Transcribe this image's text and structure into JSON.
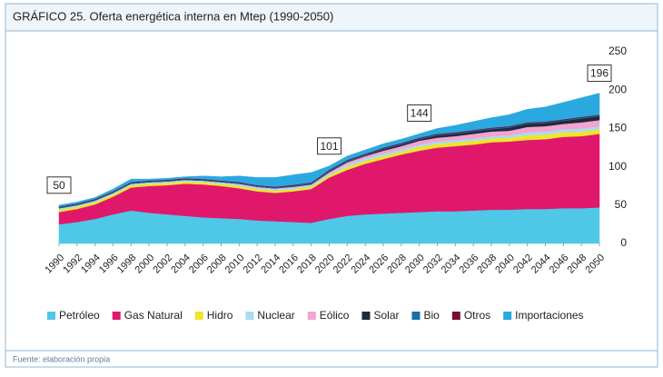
{
  "chart_data": {
    "type": "stacked_area",
    "title": "GRÁFICO 25. Oferta energética interna en Mtep (1990-2050)",
    "source": "Fuente: elaboración propia",
    "x": [
      1990,
      1992,
      1994,
      1996,
      1998,
      2000,
      2002,
      2004,
      2006,
      2008,
      2010,
      2012,
      2014,
      2016,
      2018,
      2020,
      2022,
      2024,
      2026,
      2028,
      2030,
      2032,
      2034,
      2036,
      2038,
      2040,
      2042,
      2044,
      2046,
      2048,
      2050
    ],
    "xlim": [
      1990,
      2050
    ],
    "ylim": [
      0,
      250
    ],
    "yticks": [
      0,
      50,
      100,
      150,
      200,
      250
    ],
    "series": [
      {
        "name": "Petróleo",
        "color": "#4fc8e8",
        "values": [
          25,
          28,
          32,
          38,
          43,
          40,
          38,
          36,
          34,
          33,
          32,
          30,
          29,
          28,
          27,
          32,
          36,
          38,
          39,
          40,
          41,
          42,
          42,
          43,
          44,
          44,
          45,
          45,
          46,
          46,
          47
        ]
      },
      {
        "name": "Gas Natural",
        "color": "#e0186c",
        "values": [
          16,
          17,
          19,
          23,
          30,
          35,
          38,
          42,
          43,
          42,
          40,
          38,
          37,
          40,
          44,
          54,
          60,
          66,
          71,
          76,
          80,
          83,
          85,
          86,
          88,
          89,
          90,
          91,
          93,
          94,
          96
        ]
      },
      {
        "name": "Hidro",
        "color": "#f2e32c",
        "values": [
          3,
          3,
          3,
          3,
          3,
          3,
          3,
          3,
          3,
          3,
          3,
          3,
          3,
          3,
          3,
          3,
          4,
          4,
          4,
          4,
          5,
          5,
          5,
          5,
          5,
          5,
          6,
          6,
          6,
          6,
          6
        ]
      },
      {
        "name": "Nuclear",
        "color": "#a8ddf0",
        "values": [
          2,
          2,
          2,
          2,
          2,
          2,
          2,
          2,
          2,
          2,
          2,
          2,
          2,
          2,
          2,
          2,
          3,
          3,
          3,
          3,
          3,
          3,
          3,
          3,
          3,
          3,
          4,
          4,
          4,
          4,
          4
        ]
      },
      {
        "name": "Eólico",
        "color": "#f5a3d0",
        "values": [
          0,
          0,
          0,
          0,
          0,
          0,
          0,
          0,
          0,
          0,
          1,
          1,
          1,
          1,
          1,
          2,
          3,
          3,
          4,
          4,
          5,
          5,
          5,
          6,
          6,
          6,
          7,
          7,
          7,
          8,
          8
        ]
      },
      {
        "name": "Solar",
        "color": "#1c2b3a",
        "values": [
          0,
          0,
          0,
          0,
          0,
          0,
          0,
          0,
          0,
          0,
          0,
          0,
          0,
          0.5,
          0.5,
          1,
          1,
          1,
          2,
          2,
          2,
          3,
          3,
          3,
          3,
          4,
          4,
          4,
          4,
          5,
          5
        ]
      },
      {
        "name": "Bio",
        "color": "#1b6fa8",
        "values": [
          1,
          1,
          1,
          1,
          1,
          1,
          1,
          1,
          1,
          1,
          1,
          1,
          1,
          1,
          1,
          1,
          1,
          1,
          1,
          1,
          1,
          1,
          1,
          1,
          1,
          1,
          1,
          1,
          1,
          1,
          1
        ]
      },
      {
        "name": "Otros",
        "color": "#7a0c2e",
        "values": [
          1,
          1,
          1,
          1,
          1,
          1,
          1,
          1,
          1,
          1,
          1,
          1,
          1,
          1,
          1,
          1,
          1,
          1,
          1,
          1,
          1,
          1,
          1,
          1,
          1,
          1,
          1,
          1,
          1,
          1,
          1
        ]
      },
      {
        "name": "Importaciones",
        "color": "#2aa8e0",
        "values": [
          2,
          2,
          2,
          3,
          4,
          2,
          2,
          2,
          4,
          5,
          8,
          10,
          12,
          13,
          13,
          5,
          5,
          5,
          5,
          5,
          5,
          7,
          9,
          11,
          13,
          15,
          17,
          19,
          22,
          25,
          28
        ]
      }
    ],
    "annotations": [
      {
        "x": 1990,
        "value": 50
      },
      {
        "x": 2020,
        "value": 101
      },
      {
        "x": 2030,
        "value": 144
      },
      {
        "x": 2050,
        "value": 196
      }
    ]
  }
}
